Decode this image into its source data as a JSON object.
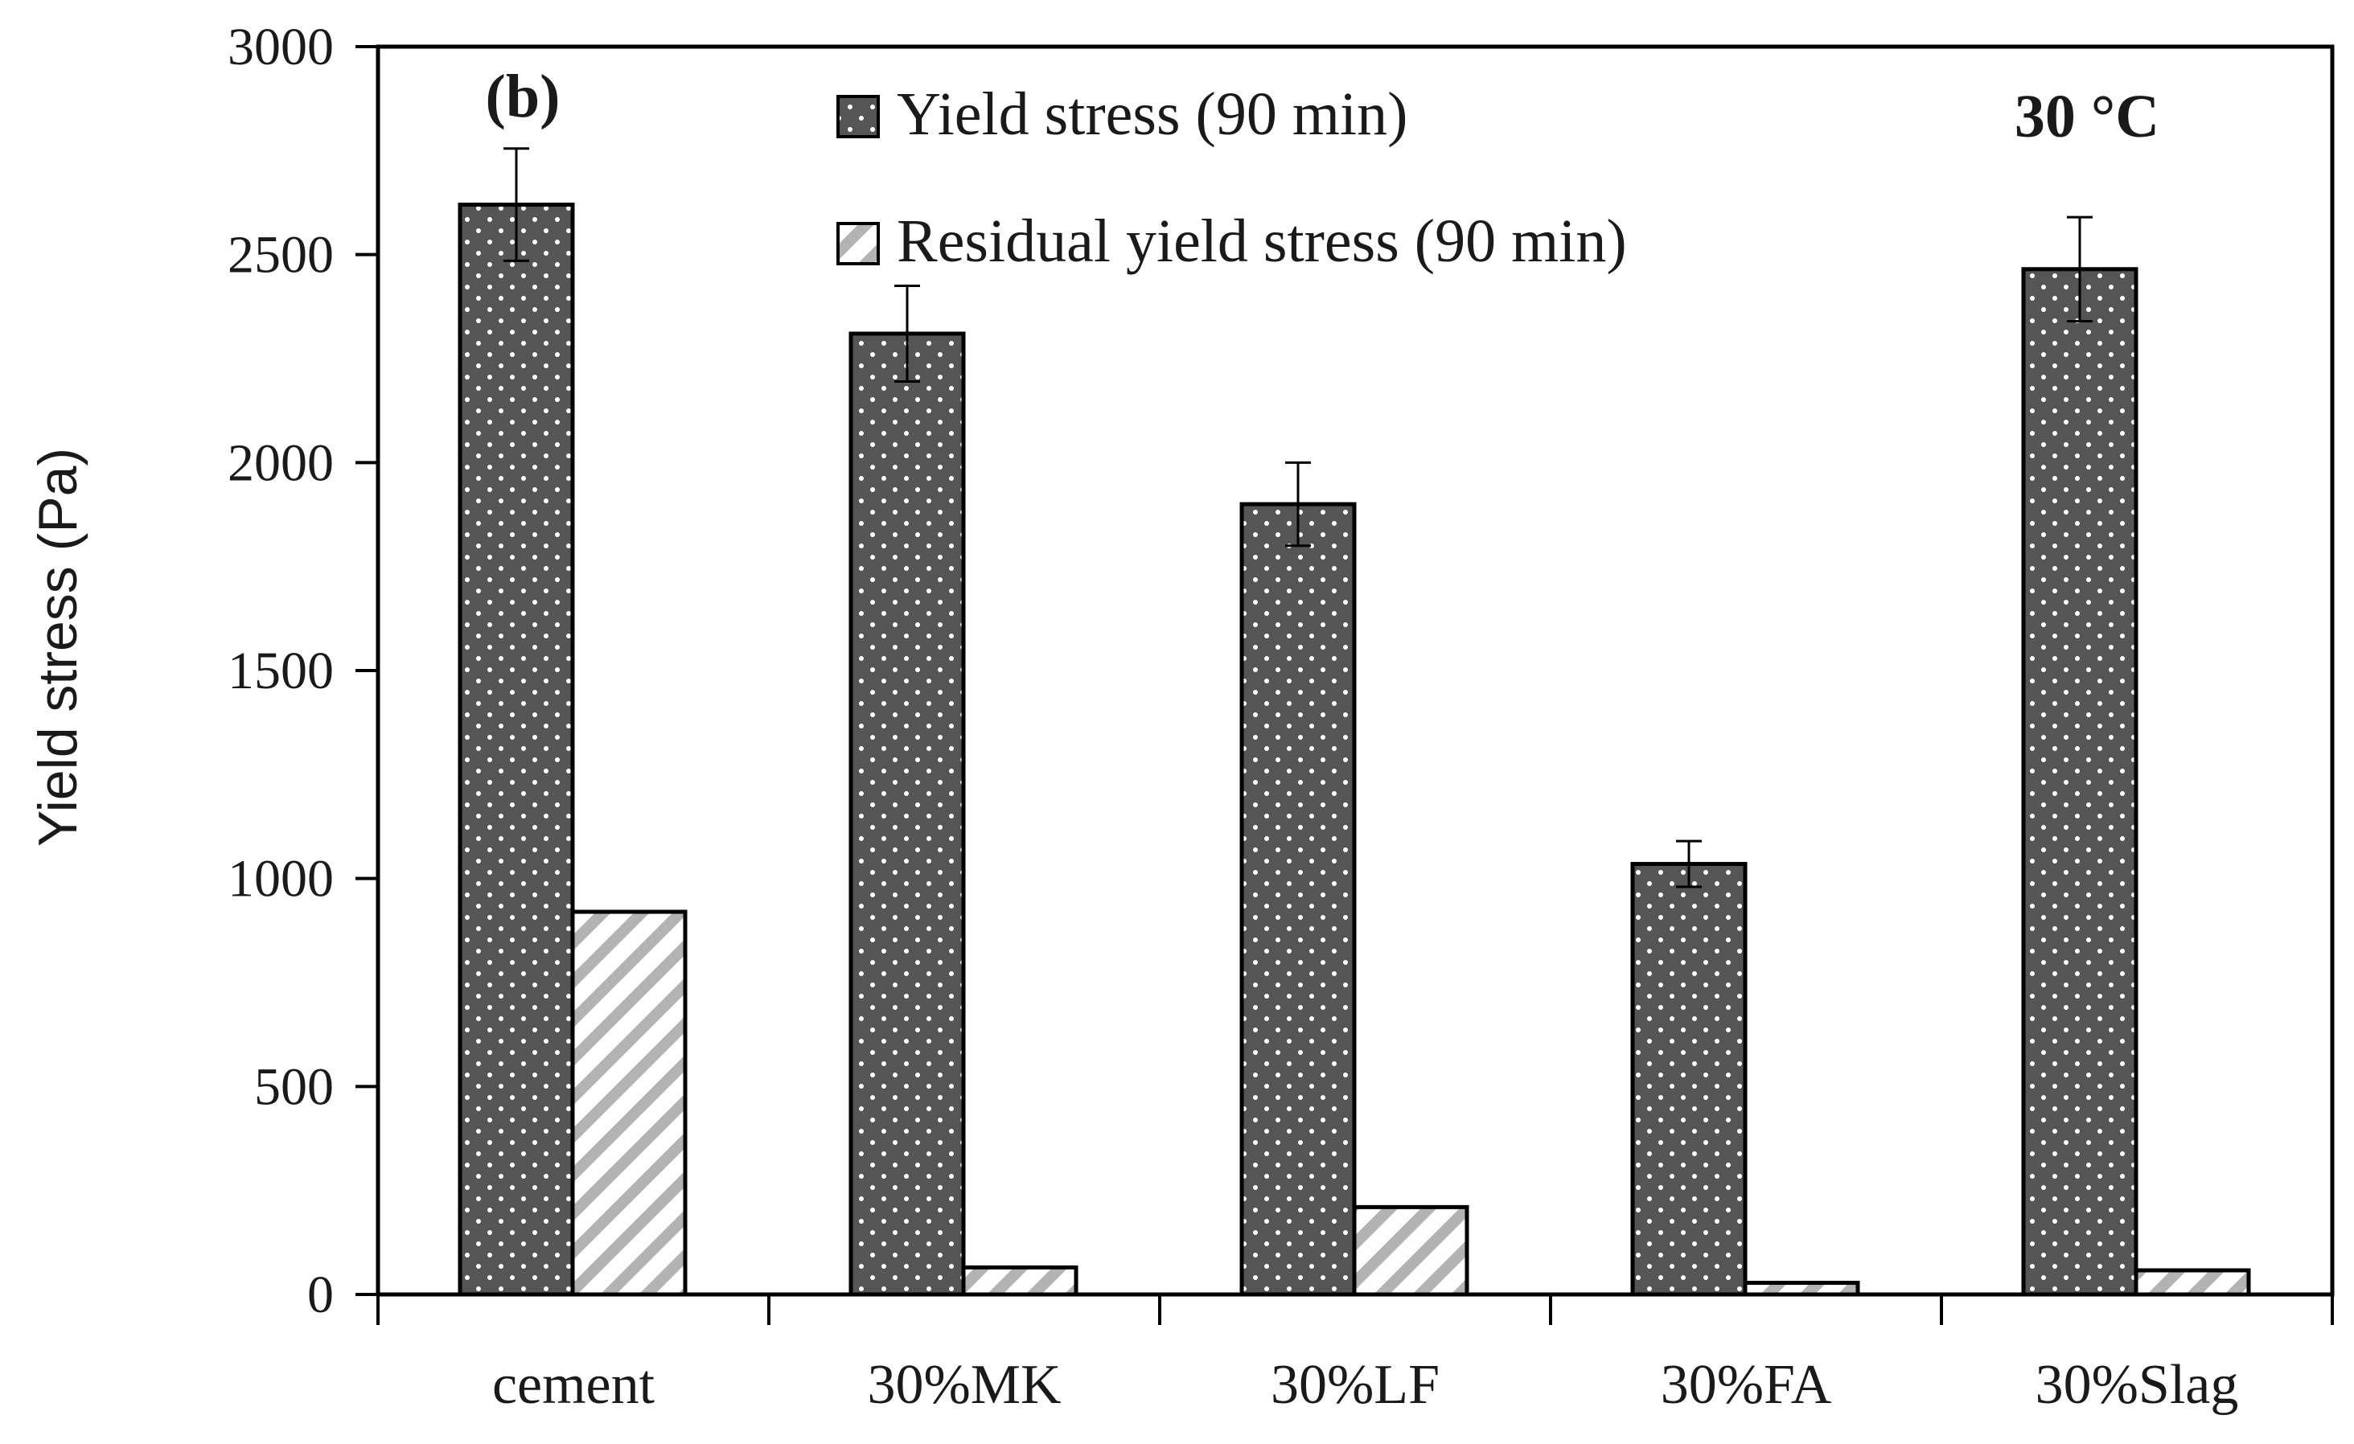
{
  "chart_data": {
    "type": "bar",
    "panel_label": "(b)",
    "temperature_label": "30 °C",
    "ylabel": "Yield stress (Pa)",
    "xlabel": "",
    "ylim": [
      0,
      3000
    ],
    "yticks": [
      "0",
      "500",
      "1000",
      "1500",
      "2000",
      "2500",
      "3000"
    ],
    "categories": [
      "cement",
      "30%MK",
      "30%LF",
      "30%FA",
      "30%Slag"
    ],
    "series": [
      {
        "name": "Yield stress (90 min)",
        "pattern": "dots",
        "color": "#595959",
        "values": [
          2620,
          2310,
          1900,
          1035,
          2465
        ],
        "error": [
          135,
          115,
          100,
          55,
          125
        ]
      },
      {
        "name": "Residual yield stress (90 min)",
        "pattern": "diagonal-stripes",
        "color": "#b0b0b0",
        "values": [
          920,
          65,
          210,
          28,
          58
        ]
      }
    ],
    "legend_position": "top-center",
    "grid": false
  }
}
